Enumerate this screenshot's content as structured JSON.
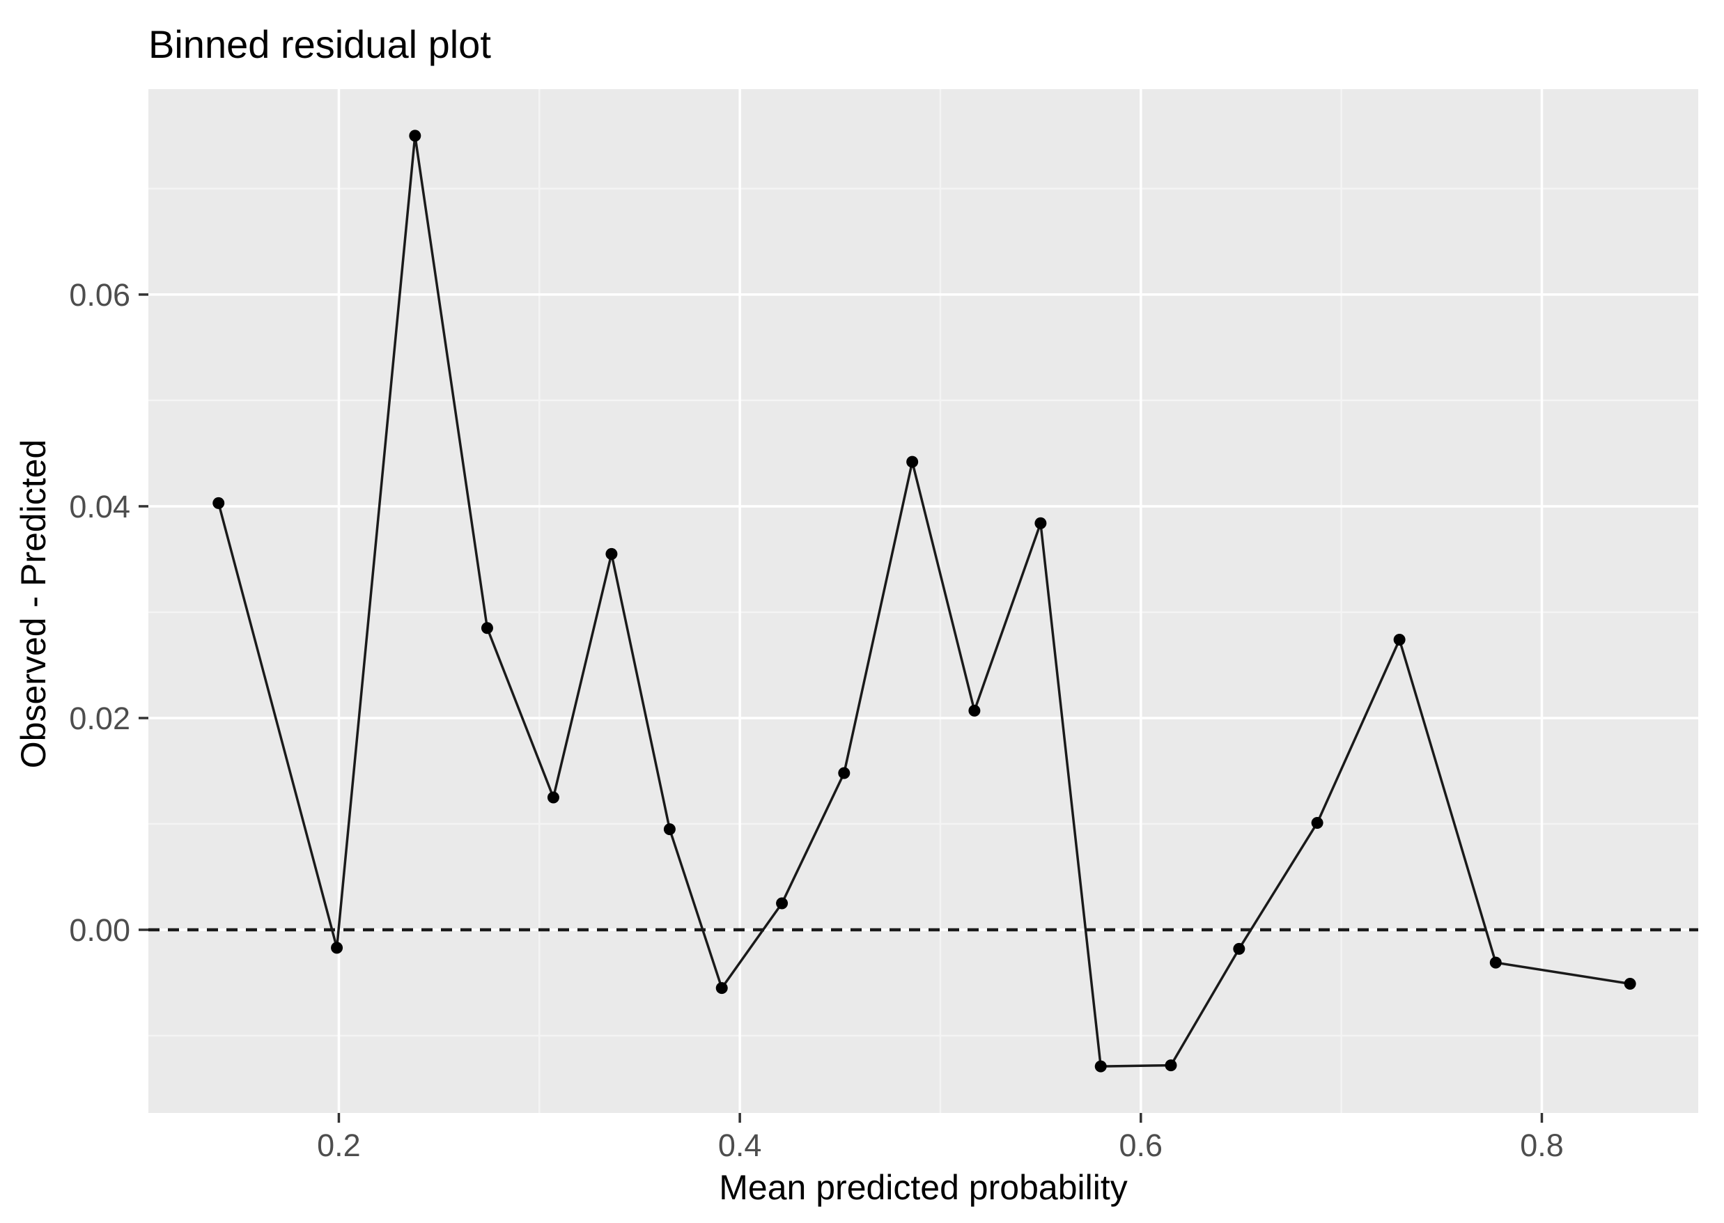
{
  "page": {
    "background_color": "#ffffff"
  },
  "chart_data": {
    "type": "line",
    "title": "Binned residual plot",
    "xlabel": "Mean predicted probability",
    "ylabel": "Observed - Predicted",
    "legend": "none",
    "grid": "on",
    "panel_color": "#eaeaea",
    "major_grid_color": "#ffffff",
    "minor_grid_color": "#f4f4f4",
    "line_color": "#1a1a1a",
    "point_color": "#000000",
    "reference_line_color": "#1a1a1a",
    "tick_label_color": "#4d4d4d",
    "axis_title_color": "#000000",
    "tick_mark_color": "#333333",
    "xlim": [
      0.105,
      0.878
    ],
    "ylim": [
      -0.0173,
      0.0794
    ],
    "x_major_ticks": [
      0.2,
      0.4,
      0.6,
      0.8
    ],
    "x_tick_labels": [
      "0.2",
      "0.4",
      "0.6",
      "0.8"
    ],
    "x_minor_ticks": [
      0.3,
      0.5,
      0.7
    ],
    "y_major_ticks": [
      0.0,
      0.02,
      0.04,
      0.06
    ],
    "y_tick_labels": [
      "0.00",
      "0.02",
      "0.04",
      "0.06"
    ],
    "y_minor_ticks": [
      -0.01,
      0.01,
      0.03,
      0.05,
      0.07
    ],
    "reference_line": {
      "y": 0,
      "style": "dashed"
    },
    "series": [
      {
        "name": "binned-residuals",
        "points": [
          {
            "x": 0.14,
            "y": 0.0403
          },
          {
            "x": 0.199,
            "y": -0.0017
          },
          {
            "x": 0.238,
            "y": 0.075
          },
          {
            "x": 0.274,
            "y": 0.0285
          },
          {
            "x": 0.307,
            "y": 0.0125
          },
          {
            "x": 0.336,
            "y": 0.0355
          },
          {
            "x": 0.365,
            "y": 0.0095
          },
          {
            "x": 0.391,
            "y": -0.0055
          },
          {
            "x": 0.421,
            "y": 0.0025
          },
          {
            "x": 0.452,
            "y": 0.0148
          },
          {
            "x": 0.486,
            "y": 0.0442
          },
          {
            "x": 0.517,
            "y": 0.0207
          },
          {
            "x": 0.55,
            "y": 0.0384
          },
          {
            "x": 0.58,
            "y": -0.0129
          },
          {
            "x": 0.615,
            "y": -0.0128
          },
          {
            "x": 0.649,
            "y": -0.0018
          },
          {
            "x": 0.688,
            "y": 0.0101
          },
          {
            "x": 0.729,
            "y": 0.0274
          },
          {
            "x": 0.777,
            "y": -0.0031
          },
          {
            "x": 0.844,
            "y": -0.0051
          }
        ]
      }
    ]
  }
}
